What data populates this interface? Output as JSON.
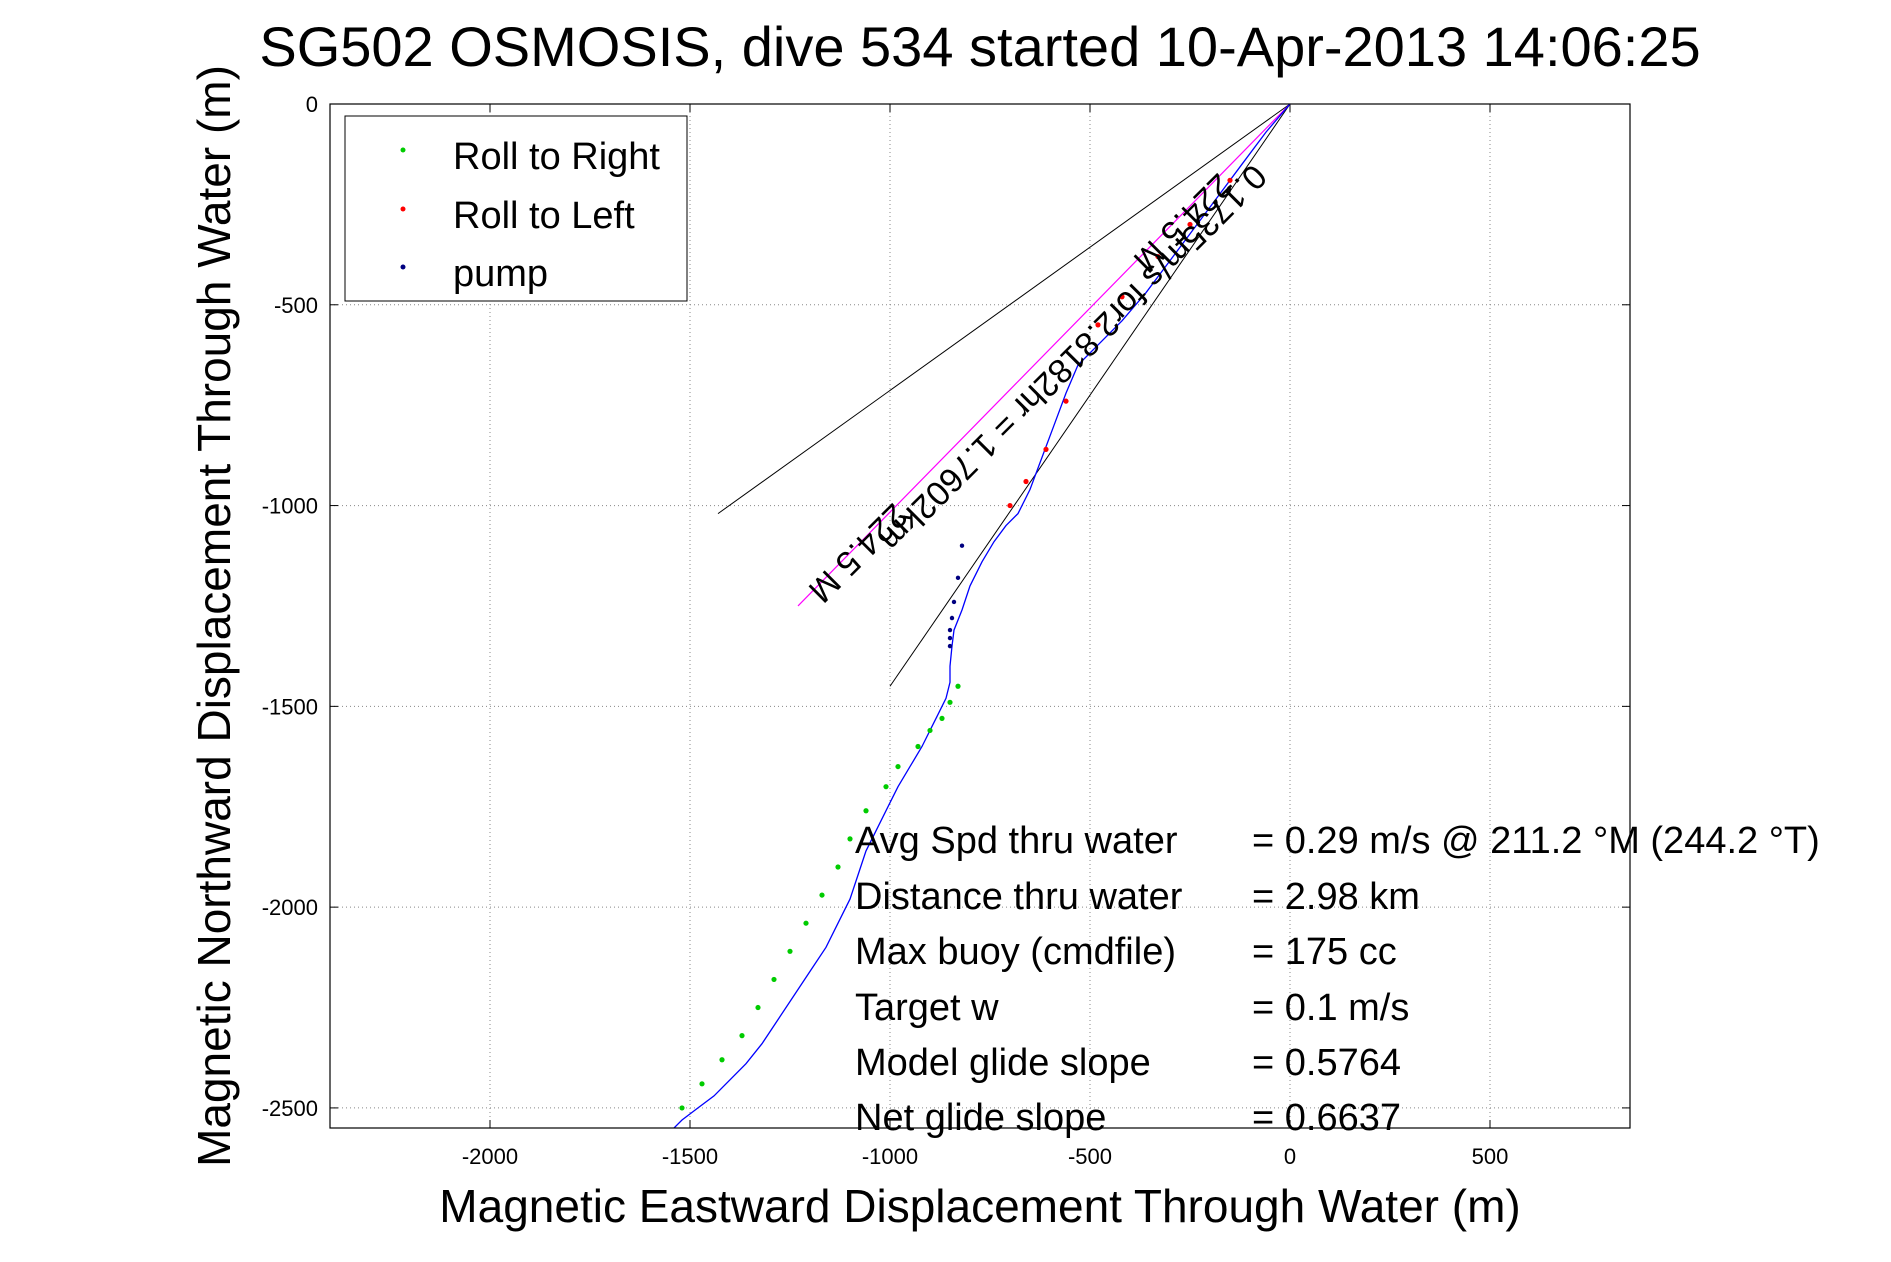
{
  "chart_data": {
    "type": "line",
    "title": "SG502 OSMOSIS, dive 534 started 10-Apr-2013 14:06:25",
    "xlabel": "Magnetic Eastward Displacement Through Water (m)",
    "ylabel": "Magnetic Northward Displacement Through Water (m)",
    "xlim": [
      -2400,
      850
    ],
    "ylim": [
      -2550,
      0
    ],
    "xticks": [
      -2000,
      -1500,
      -1000,
      -500,
      0,
      500
    ],
    "yticks": [
      0,
      -500,
      -1000,
      -1500,
      -2000,
      -2500
    ],
    "grid": true,
    "legend_position": "top-left",
    "legend": [
      {
        "label": "Roll to Right",
        "color": "#00cc00"
      },
      {
        "label": "Roll to Left",
        "color": "#ff0000"
      },
      {
        "label": "pump",
        "color": "#000080"
      }
    ],
    "track": {
      "name": "track",
      "color": "#0000ff",
      "x": [
        0,
        -60,
        -120,
        -180,
        -240,
        -300,
        -360,
        -420,
        -480,
        -530,
        -560,
        -590,
        -620,
        -650,
        -680,
        -710,
        -740,
        -770,
        -800,
        -820,
        -840,
        -845,
        -850,
        -850,
        -860,
        -880,
        -900,
        -920,
        -950,
        -980,
        -1000,
        -1030,
        -1060,
        -1080,
        -1100,
        -1130,
        -1160,
        -1200,
        -1240,
        -1280,
        -1320,
        -1360,
        -1400,
        -1440,
        -1480,
        -1520,
        -1550
      ],
      "y": [
        0,
        -70,
        -150,
        -230,
        -310,
        -390,
        -470,
        -540,
        -600,
        -650,
        -720,
        -800,
        -880,
        -960,
        -1020,
        -1050,
        -1090,
        -1140,
        -1200,
        -1260,
        -1310,
        -1350,
        -1400,
        -1440,
        -1480,
        -1520,
        -1560,
        -1600,
        -1650,
        -1700,
        -1740,
        -1800,
        -1860,
        -1920,
        -1980,
        -2040,
        -2100,
        -2160,
        -2220,
        -2280,
        -2340,
        -2390,
        -2430,
        -2470,
        -2500,
        -2530,
        -2560
      ]
    },
    "roll_right_points": {
      "x": [
        -830,
        -850,
        -870,
        -900,
        -930,
        -980,
        -1010,
        -1060,
        -1100,
        -1130,
        -1170,
        -1210,
        -1250,
        -1290,
        -1330,
        -1370,
        -1420,
        -1470,
        -1520
      ],
      "y": [
        -1450,
        -1490,
        -1530,
        -1560,
        -1600,
        -1650,
        -1700,
        -1760,
        -1830,
        -1900,
        -1970,
        -2040,
        -2110,
        -2180,
        -2250,
        -2320,
        -2380,
        -2440,
        -2500
      ]
    },
    "roll_left_points": {
      "x": [
        -150,
        -250,
        -330,
        -420,
        -480,
        -560,
        -610,
        -660,
        -700
      ],
      "y": [
        -190,
        -300,
        -380,
        -480,
        -550,
        -740,
        -860,
        -940,
        -1000
      ]
    },
    "pump_points": {
      "x": [
        -820,
        -830,
        -840,
        -845,
        -850,
        -850,
        -850
      ],
      "y": [
        -1100,
        -1180,
        -1240,
        -1280,
        -1310,
        -1330,
        -1350
      ]
    },
    "bounding_lines": [
      {
        "x": [
          0,
          -1430
        ],
        "y": [
          0,
          -1020
        ]
      },
      {
        "x": [
          0,
          -1000
        ],
        "y": [
          0,
          -1450
        ]
      }
    ],
    "heading_line": {
      "x": [
        0,
        -1230
      ],
      "y": [
        0,
        -1250
      ],
      "color": "#ff00ff"
    },
    "rotated_annotations": [
      "0.1735m/s for2.8182hr = 1.7602km",
      "224.5 M",
      "224.5 M"
    ],
    "stats": [
      {
        "label": "Avg Spd thru water",
        "value": "=  0.29 m/s @ 211.2 °M (244.2 °T)"
      },
      {
        "label": "Distance thru water",
        "value": "=  2.98 km"
      },
      {
        "label": "Max buoy (cmdfile)",
        "value": "= 175 cc"
      },
      {
        "label": "Target w",
        "value": "= 0.1 m/s"
      },
      {
        "label": "Model glide slope",
        "value": "= 0.5764"
      },
      {
        "label": "Net glide slope",
        "value": "= 0.6637"
      }
    ]
  }
}
